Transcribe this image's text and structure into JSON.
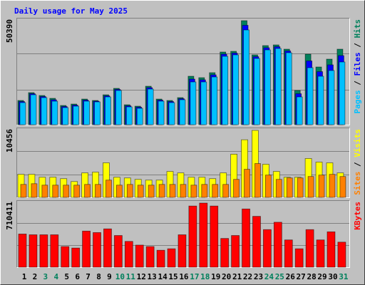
{
  "chart_data": [
    {
      "type": "bar",
      "title": "Daily usage for May 2025",
      "title_color": "#0000ff",
      "ylim": [
        0,
        50390
      ],
      "yticks": [
        50390
      ],
      "legend_separator": " / ",
      "series": [
        {
          "name": "Hits",
          "color": "#00805c",
          "values": [
            11734,
            15530,
            14150,
            12770,
            9318,
            10008,
            12424,
            11734,
            14495,
            17601,
            9664,
            8973,
            18636,
            12424,
            11734,
            13115,
            23468,
            22778,
            25194,
            35203,
            35548,
            50390,
            33822,
            38308,
            38654,
            36583,
            16566,
            34167,
            27955,
            31751,
            36583
          ]
        },
        {
          "name": "Files",
          "color": "#0000ff",
          "values": [
            11216,
            15012,
            13632,
            12079,
            8800,
            9490,
            11906,
            11388,
            13977,
            17083,
            9146,
            8455,
            17946,
            11906,
            11216,
            12597,
            22087,
            21742,
            24158,
            34166,
            34684,
            48144,
            32958,
            37272,
            37790,
            35719,
            15012,
            30887,
            25711,
            28989,
            33476
          ]
        },
        {
          "name": "Pages",
          "color": "#00c0ff",
          "values": [
            10698,
            14494,
            13114,
            11388,
            8282,
            8973,
            11388,
            11043,
            13459,
            16565,
            8628,
            7937,
            17255,
            11388,
            10698,
            12079,
            20706,
            20706,
            23122,
            33130,
            33820,
            45898,
            32094,
            36236,
            36926,
            34855,
            13459,
            27608,
            23467,
            26228,
            30369
          ]
        }
      ]
    },
    {
      "type": "bar",
      "ylim": [
        0,
        10456
      ],
      "yticks": [
        10456
      ],
      "legend_separator": " / ",
      "series": [
        {
          "name": "Visits",
          "color": "#ffff00",
          "values": [
            3597,
            3597,
            3147,
            3147,
            2922,
            2473,
            3822,
            3934,
            5395,
            3147,
            3035,
            2810,
            2698,
            2698,
            4046,
            3822,
            3147,
            3147,
            2922,
            3822,
            6744,
            8992,
            10456,
            5170,
            4046,
            3147,
            3147,
            6070,
            5508,
            5395,
            3822
          ]
        },
        {
          "name": "Sites",
          "color": "#ff8000",
          "values": [
            2023,
            2136,
            1911,
            1911,
            1911,
            1911,
            2023,
            2023,
            2698,
            1911,
            2023,
            1911,
            1911,
            2023,
            2023,
            2023,
            1911,
            2023,
            2023,
            2023,
            2810,
            4384,
            5283,
            3484,
            2810,
            3035,
            3035,
            3260,
            3484,
            3597,
            3260
          ]
        }
      ]
    },
    {
      "type": "bar",
      "ylim": [
        0,
        710411
      ],
      "yticks": [
        710411
      ],
      "series": [
        {
          "name": "KBytes",
          "color": "#ff0000",
          "values": [
            367470,
            359304,
            359304,
            359304,
            228648,
            212316,
            400134,
            383802,
            424632,
            351138,
            285810,
            244980,
            228648,
            187818,
            204150,
            359304,
            677778,
            710411,
            677778,
            318474,
            351138,
            645114,
            563454,
            416466,
            498126,
            302142,
            204150,
            416466,
            302142,
            391968,
            277644
          ]
        }
      ],
      "categories": [
        "1",
        "2",
        "3",
        "4",
        "5",
        "6",
        "7",
        "8",
        "9",
        "10",
        "11",
        "12",
        "13",
        "14",
        "15",
        "16",
        "17",
        "18",
        "19",
        "20",
        "21",
        "22",
        "23",
        "24",
        "25",
        "26",
        "27",
        "28",
        "29",
        "30",
        "31"
      ],
      "category_colors": [
        "#000000",
        "#000000",
        "#00805c",
        "#00805c",
        "#000000",
        "#000000",
        "#000000",
        "#000000",
        "#000000",
        "#00805c",
        "#00805c",
        "#000000",
        "#000000",
        "#000000",
        "#000000",
        "#000000",
        "#00805c",
        "#00805c",
        "#000000",
        "#000000",
        "#000000",
        "#000000",
        "#000000",
        "#00805c",
        "#00805c",
        "#000000",
        "#000000",
        "#000000",
        "#000000",
        "#000000",
        "#00805c"
      ]
    }
  ]
}
